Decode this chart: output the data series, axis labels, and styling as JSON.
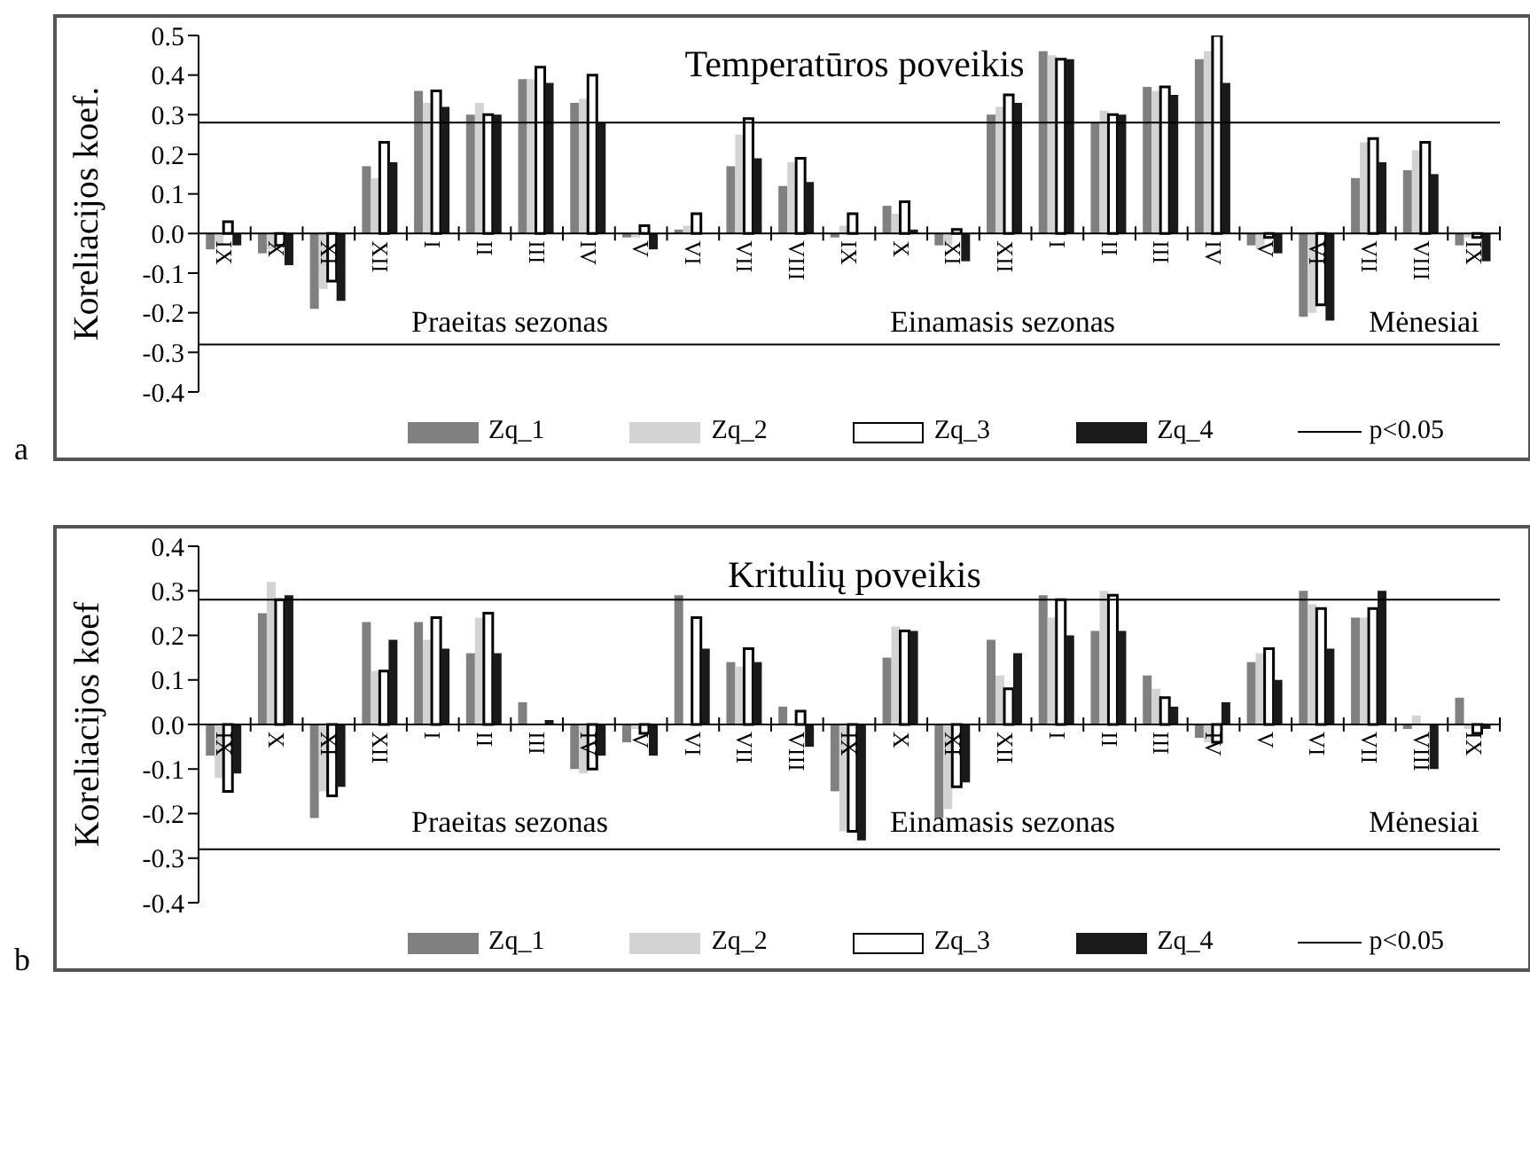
{
  "chart_data": [
    {
      "type": "bar",
      "title": "Temperatūros poveikis",
      "ylabel": "Koreliacijos koef.",
      "categories": [
        "IX",
        "X",
        "XI",
        "XII",
        "I",
        "II",
        "III",
        "IV",
        "V",
        "VI",
        "VII",
        "VIII",
        "IX",
        "X",
        "XI",
        "XII",
        "I",
        "II",
        "III",
        "IV",
        "V",
        "VI",
        "VII",
        "VIII",
        "IX"
      ],
      "series": [
        {
          "name": "Zq_1",
          "color": "#808080",
          "values": [
            -0.04,
            -0.05,
            -0.19,
            0.17,
            0.36,
            0.3,
            0.39,
            0.33,
            -0.01,
            0.01,
            0.17,
            0.12,
            -0.01,
            0.07,
            -0.03,
            0.3,
            0.46,
            0.28,
            0.37,
            0.44,
            -0.03,
            -0.21,
            0.14,
            0.16,
            -0.03
          ]
        },
        {
          "name": "Zq_2",
          "color": "#d3d3d3",
          "values": [
            -0.03,
            -0.04,
            -0.14,
            0.14,
            0.33,
            0.33,
            0.39,
            0.34,
            -0.01,
            0.02,
            0.25,
            0.18,
            0.02,
            0.05,
            -0.03,
            0.32,
            0.45,
            0.31,
            0.36,
            0.46,
            -0.04,
            -0.2,
            0.23,
            0.21,
            -0.01
          ]
        },
        {
          "name": "Zq_3",
          "color": "#ffffff",
          "values": [
            0.03,
            -0.03,
            -0.12,
            0.23,
            0.36,
            0.3,
            0.42,
            0.4,
            0.02,
            0.05,
            0.29,
            0.19,
            0.05,
            0.08,
            0.01,
            0.35,
            0.44,
            0.3,
            0.37,
            0.5,
            -0.01,
            -0.18,
            0.24,
            0.23,
            -0.01
          ]
        },
        {
          "name": "Zq_4",
          "color": "#1a1a1a",
          "values": [
            -0.03,
            -0.08,
            -0.17,
            0.18,
            0.32,
            0.3,
            0.38,
            0.28,
            -0.04,
            0.0,
            0.19,
            0.13,
            0.0,
            0.01,
            -0.07,
            0.33,
            0.44,
            0.3,
            0.35,
            0.38,
            -0.05,
            -0.22,
            0.18,
            0.15,
            -0.07
          ]
        }
      ],
      "ylim": [
        -0.4,
        0.5
      ],
      "yticks": [
        -0.4,
        -0.3,
        -0.2,
        -0.1,
        {
          "value": 0,
          "label": "0.0"
        },
        0.1,
        0.2,
        0.3,
        0.4,
        0.5
      ],
      "ref_lines": [
        {
          "axis": "y",
          "value": 0.28,
          "label": "p<0.05",
          "color": "#000000"
        },
        {
          "axis": "y",
          "value": -0.28,
          "color": "#000000"
        }
      ],
      "annotations": [
        "Praeitas sezonas",
        "Einamasis sezonas",
        "Mėnesiai",
        "a"
      ],
      "legend": "bottom"
    },
    {
      "type": "bar",
      "title": "Kritulių poveikis",
      "ylabel": "Koreliacijos koef",
      "categories": [
        "IX",
        "X",
        "XI",
        "XII",
        "I",
        "II",
        "III",
        "IV",
        "V",
        "VI",
        "VII",
        "VIII",
        "IX",
        "X",
        "XI",
        "XII",
        "I",
        "II",
        "III",
        "IV",
        "V",
        "VI",
        "VII",
        "VIII",
        "IX"
      ],
      "series": [
        {
          "name": "Zq_1",
          "color": "#808080",
          "values": [
            -0.07,
            0.25,
            -0.21,
            0.23,
            0.23,
            0.16,
            0.05,
            -0.1,
            -0.04,
            0.29,
            0.14,
            0.04,
            -0.15,
            0.15,
            -0.21,
            0.19,
            0.29,
            0.21,
            0.11,
            -0.03,
            0.14,
            0.3,
            0.24,
            -0.01,
            0.06
          ]
        },
        {
          "name": "Zq_2",
          "color": "#d3d3d3",
          "values": [
            -0.12,
            0.32,
            -0.15,
            0.12,
            0.19,
            0.24,
            0.0,
            -0.11,
            -0.01,
            0.0,
            0.13,
            0.0,
            -0.24,
            0.22,
            -0.19,
            0.11,
            0.24,
            0.3,
            0.08,
            -0.04,
            0.16,
            0.27,
            0.24,
            0.02,
            -0.01
          ]
        },
        {
          "name": "Zq_3",
          "color": "#ffffff",
          "values": [
            -0.15,
            0.28,
            -0.16,
            0.12,
            0.24,
            0.25,
            0.0,
            -0.1,
            -0.02,
            0.24,
            0.17,
            0.03,
            -0.24,
            0.21,
            -0.14,
            0.08,
            0.28,
            0.29,
            0.06,
            -0.04,
            0.17,
            0.26,
            0.26,
            0.0,
            -0.02
          ]
        },
        {
          "name": "Zq_4",
          "color": "#1a1a1a",
          "values": [
            -0.11,
            0.29,
            -0.14,
            0.19,
            0.17,
            0.16,
            0.01,
            -0.07,
            -0.07,
            0.17,
            0.14,
            -0.05,
            -0.26,
            0.21,
            -0.13,
            0.16,
            0.2,
            0.21,
            0.04,
            0.05,
            0.1,
            0.17,
            0.3,
            -0.1,
            -0.01
          ]
        }
      ],
      "ylim": [
        -0.4,
        0.4
      ],
      "yticks": [
        -0.4,
        -0.3,
        -0.2,
        -0.1,
        {
          "value": 0,
          "label": "0.0"
        },
        0.1,
        0.2,
        0.3,
        0.4
      ],
      "ref_lines": [
        {
          "axis": "y",
          "value": 0.28,
          "label": "p<0.05",
          "color": "#000000"
        },
        {
          "axis": "y",
          "value": -0.28,
          "color": "#000000"
        }
      ],
      "annotations": [
        "Praeitas sezonas",
        "Einamasis sezonas",
        "Mėnesiai",
        "b"
      ],
      "legend": "bottom"
    }
  ]
}
